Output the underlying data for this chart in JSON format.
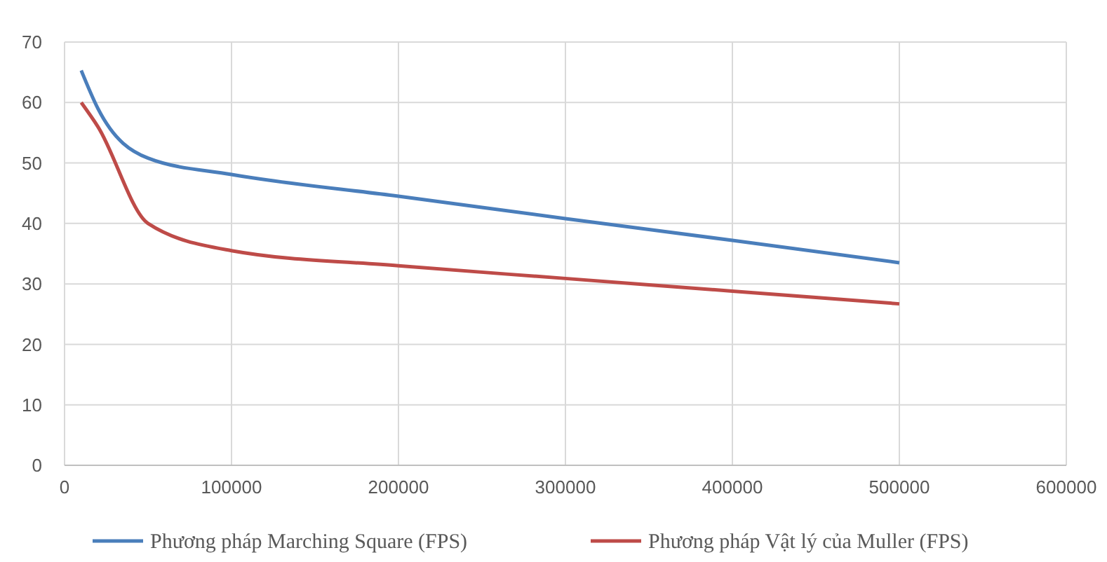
{
  "chart_data": {
    "type": "line",
    "x": [
      10000,
      20000,
      50000,
      100000,
      200000,
      300000,
      400000,
      500000
    ],
    "series": [
      {
        "name": "Phương pháp Marching Square (FPS)",
        "color": "#4a7ebb",
        "values": [
          65.3,
          59,
          50.8,
          48.1,
          44.5,
          40.8,
          37.2,
          33.5
        ]
      },
      {
        "name": "Phương pháp Vật lý của Muller (FPS)",
        "color": "#be4b48",
        "values": [
          60,
          56,
          40,
          35.5,
          33,
          30.9,
          28.8,
          26.7
        ]
      }
    ],
    "xlim": [
      0,
      600000
    ],
    "xticks": [
      0,
      100000,
      200000,
      300000,
      400000,
      500000,
      600000
    ],
    "ylim": [
      0,
      70
    ],
    "yticks": [
      0,
      10,
      20,
      30,
      40,
      50,
      60,
      70
    ],
    "grid": true,
    "legend": "bottom",
    "marker": "none",
    "line_style": "solid"
  }
}
